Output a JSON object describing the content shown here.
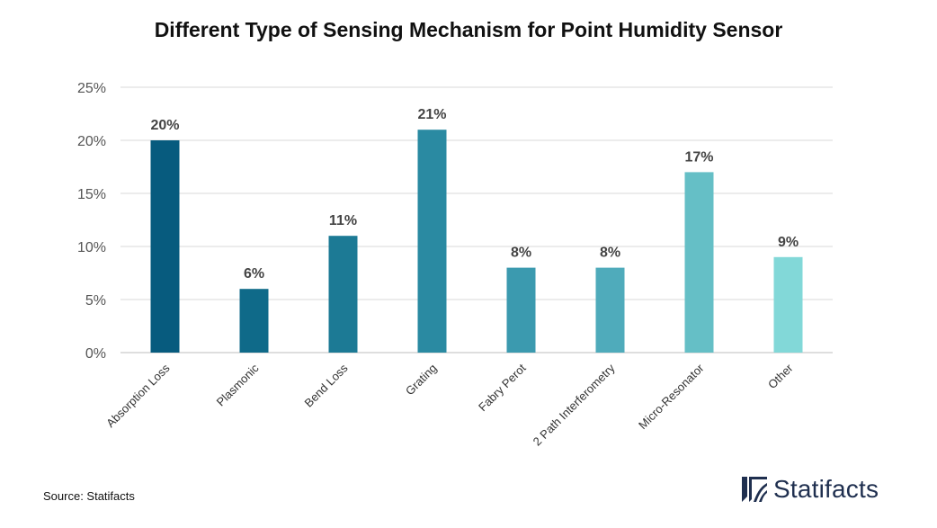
{
  "chart_data": {
    "type": "bar",
    "title": "Different Type of Sensing Mechanism for Point Humidity Sensor",
    "categories": [
      "Absorption Loss",
      "Plasmonic",
      "Bend Loss",
      "Grating",
      "Fabry Perot",
      "2 Path Interferometry",
      "Micro-Resonator",
      "Other"
    ],
    "values": [
      20,
      6,
      11,
      21,
      8,
      8,
      17,
      9
    ],
    "data_labels": [
      "20%",
      "6%",
      "11%",
      "21%",
      "8%",
      "8%",
      "17%",
      "9%"
    ],
    "colors": [
      "#075b7e",
      "#0f6a89",
      "#1c7a95",
      "#2a8aa2",
      "#3b9aaf",
      "#4fabbb",
      "#65bfc6",
      "#82d8d8"
    ],
    "ylim": [
      0,
      25
    ],
    "yticks": [
      0,
      5,
      10,
      15,
      20,
      25
    ],
    "ytick_labels": [
      "0%",
      "5%",
      "10%",
      "15%",
      "20%",
      "25%"
    ],
    "xlabel": "",
    "ylabel": "",
    "grid": true,
    "legend": "none"
  },
  "footer": {
    "source": "Source: Statifacts",
    "brand": "Statifacts"
  },
  "colors": {
    "brand": "#1f2f4f",
    "grid": "#d9d9d9"
  }
}
